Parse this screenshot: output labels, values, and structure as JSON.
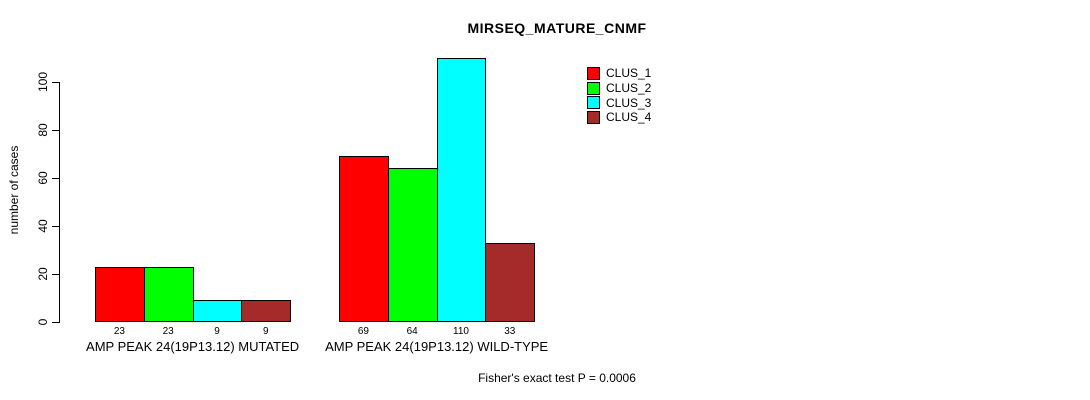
{
  "chart_data": {
    "type": "bar",
    "title": "MIRSEQ_MATURE_CNMF",
    "xlabel": "",
    "ylabel": "number of cases",
    "ylim": [
      0,
      110
    ],
    "yticks": [
      0,
      20,
      40,
      60,
      80,
      100
    ],
    "grid": false,
    "legend_position": "top-right-outside",
    "categories": [
      "AMP PEAK 24(19P13.12) MUTATED",
      "AMP PEAK 24(19P13.12) WILD-TYPE"
    ],
    "series": [
      {
        "name": "CLUS_1",
        "color": "#ff0000",
        "values": [
          23,
          69
        ]
      },
      {
        "name": "CLUS_2",
        "color": "#00ff00",
        "values": [
          23,
          64
        ]
      },
      {
        "name": "CLUS_3",
        "color": "#00ffff",
        "values": [
          9,
          110
        ]
      },
      {
        "name": "CLUS_4",
        "color": "#a52a2a",
        "values": [
          9,
          33
        ]
      }
    ],
    "bar_value_labels": [
      [
        "23",
        "23",
        "9",
        "9"
      ],
      [
        "69",
        "64",
        "110",
        "33"
      ]
    ],
    "annotation": "Fisher's exact test P = 0.0006"
  },
  "colors": {
    "background": "#ffffff",
    "axis": "#000000",
    "text": "#000000"
  }
}
